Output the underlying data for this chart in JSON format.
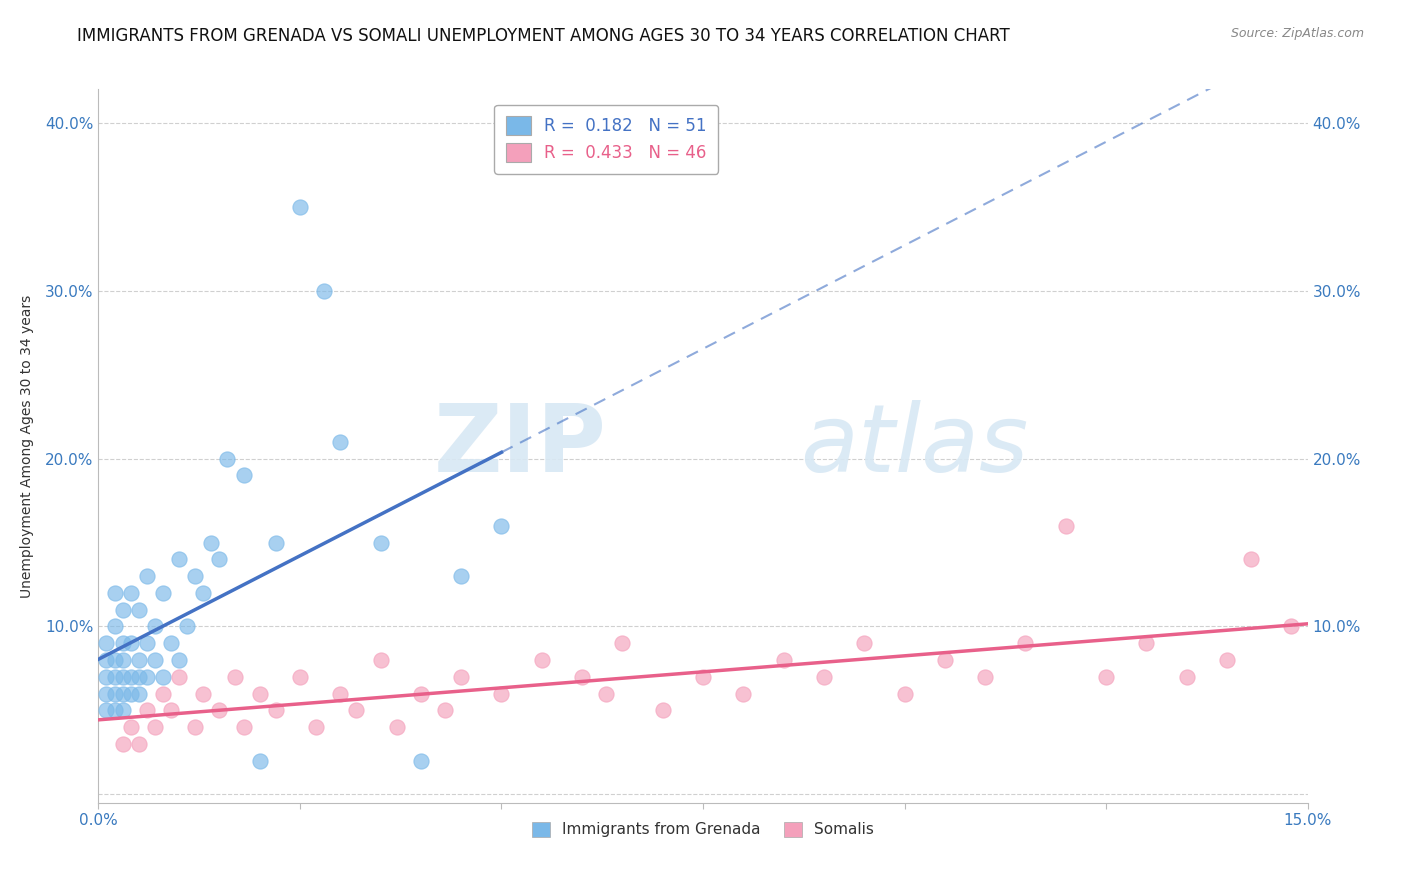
{
  "title": "IMMIGRANTS FROM GRENADA VS SOMALI UNEMPLOYMENT AMONG AGES 30 TO 34 YEARS CORRELATION CHART",
  "source": "Source: ZipAtlas.com",
  "ylabel": "Unemployment Among Ages 30 to 34 years",
  "xlim": [
    0.0,
    0.15
  ],
  "ylim": [
    -0.005,
    0.42
  ],
  "xticks": [
    0.0,
    0.025,
    0.05,
    0.075,
    0.1,
    0.125,
    0.15
  ],
  "xtick_labels": [
    "0.0%",
    "",
    "",
    "",
    "",
    "",
    "15.0%"
  ],
  "ytick_labels": [
    "",
    "10.0%",
    "20.0%",
    "30.0%",
    "40.0%"
  ],
  "yticks": [
    0.0,
    0.1,
    0.2,
    0.3,
    0.4
  ],
  "grenada_R": 0.182,
  "grenada_N": 51,
  "somali_R": 0.433,
  "somali_N": 46,
  "grenada_color": "#7ab8e8",
  "somali_color": "#f4a0bb",
  "grenada_line_color": "#4472c4",
  "somali_line_color": "#e8608a",
  "grid_color": "#d0d0d0",
  "background_color": "#ffffff",
  "title_fontsize": 12,
  "axis_label_fontsize": 10,
  "tick_fontsize": 11,
  "legend_fontsize": 12,
  "watermark_zip": "ZIP",
  "watermark_atlas": "atlas",
  "grenada_x": [
    0.001,
    0.001,
    0.001,
    0.001,
    0.001,
    0.002,
    0.002,
    0.002,
    0.002,
    0.002,
    0.002,
    0.003,
    0.003,
    0.003,
    0.003,
    0.003,
    0.003,
    0.004,
    0.004,
    0.004,
    0.004,
    0.005,
    0.005,
    0.005,
    0.005,
    0.006,
    0.006,
    0.006,
    0.007,
    0.007,
    0.008,
    0.008,
    0.009,
    0.01,
    0.01,
    0.011,
    0.012,
    0.013,
    0.014,
    0.015,
    0.016,
    0.018,
    0.02,
    0.022,
    0.025,
    0.028,
    0.03,
    0.035,
    0.04,
    0.045,
    0.05
  ],
  "grenada_y": [
    0.05,
    0.06,
    0.07,
    0.08,
    0.09,
    0.05,
    0.06,
    0.07,
    0.08,
    0.1,
    0.12,
    0.05,
    0.06,
    0.07,
    0.08,
    0.09,
    0.11,
    0.06,
    0.07,
    0.09,
    0.12,
    0.06,
    0.07,
    0.08,
    0.11,
    0.07,
    0.09,
    0.13,
    0.08,
    0.1,
    0.07,
    0.12,
    0.09,
    0.08,
    0.14,
    0.1,
    0.13,
    0.12,
    0.15,
    0.14,
    0.2,
    0.19,
    0.02,
    0.15,
    0.35,
    0.3,
    0.21,
    0.15,
    0.02,
    0.13,
    0.16
  ],
  "somali_x": [
    0.003,
    0.004,
    0.005,
    0.006,
    0.007,
    0.008,
    0.009,
    0.01,
    0.012,
    0.013,
    0.015,
    0.017,
    0.018,
    0.02,
    0.022,
    0.025,
    0.027,
    0.03,
    0.032,
    0.035,
    0.037,
    0.04,
    0.043,
    0.045,
    0.05,
    0.055,
    0.06,
    0.063,
    0.065,
    0.07,
    0.075,
    0.08,
    0.085,
    0.09,
    0.095,
    0.1,
    0.105,
    0.11,
    0.115,
    0.12,
    0.125,
    0.13,
    0.135,
    0.14,
    0.143,
    0.148
  ],
  "somali_y": [
    0.03,
    0.04,
    0.03,
    0.05,
    0.04,
    0.06,
    0.05,
    0.07,
    0.04,
    0.06,
    0.05,
    0.07,
    0.04,
    0.06,
    0.05,
    0.07,
    0.04,
    0.06,
    0.05,
    0.08,
    0.04,
    0.06,
    0.05,
    0.07,
    0.06,
    0.08,
    0.07,
    0.06,
    0.09,
    0.05,
    0.07,
    0.06,
    0.08,
    0.07,
    0.09,
    0.06,
    0.08,
    0.07,
    0.09,
    0.16,
    0.07,
    0.09,
    0.07,
    0.08,
    0.14,
    0.1
  ]
}
